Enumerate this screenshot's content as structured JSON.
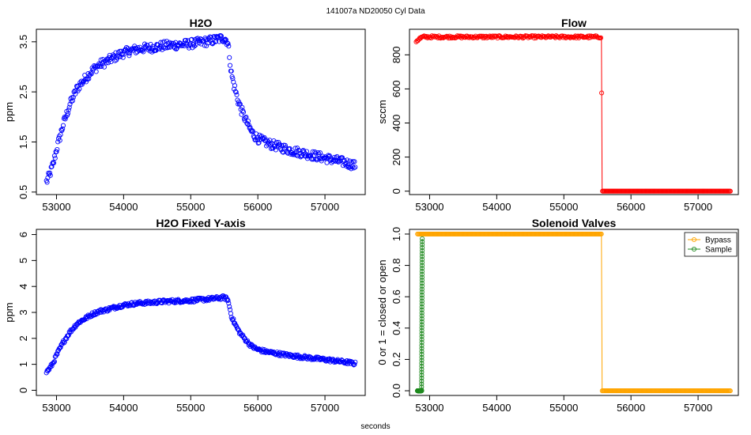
{
  "figure": {
    "suptitle": "141007a   ND20050   Cyl Data",
    "xlabel": "seconds"
  },
  "chart_data": [
    {
      "id": "h2o",
      "type": "scatter",
      "title": "H2O",
      "xlabel": "",
      "ylabel": "ppm",
      "xlim": [
        52700,
        57600
      ],
      "ylim": [
        0.45,
        3.75
      ],
      "xticks": [
        53000,
        54000,
        55000,
        56000,
        57000
      ],
      "yticks": [
        0.5,
        1.5,
        2.5,
        3.5
      ],
      "ytick_labels": [
        "0.5",
        "1.5",
        "2.5",
        "3.5"
      ],
      "ytick_rotated": true,
      "series": [
        {
          "name": "H2O",
          "color": "#0000ff",
          "marker": "open-circle",
          "x": [
            52850,
            52900,
            52950,
            53000,
            53050,
            53100,
            53150,
            53200,
            53250,
            53300,
            53350,
            53400,
            53450,
            53500,
            53550,
            53600,
            53650,
            53700,
            53750,
            53800,
            53850,
            53900,
            53950,
            54000,
            54100,
            54200,
            54300,
            54400,
            54500,
            54600,
            54700,
            54800,
            54900,
            55000,
            55100,
            55200,
            55300,
            55400,
            55500,
            55550,
            55580,
            55600,
            55650,
            55700,
            55750,
            55800,
            55850,
            55900,
            55950,
            56000,
            56100,
            56200,
            56300,
            56400,
            56500,
            56600,
            56700,
            56800,
            56900,
            57000,
            57100,
            57200,
            57300,
            57400,
            57450
          ],
          "y": [
            0.7,
            0.85,
            1.05,
            1.35,
            1.6,
            1.85,
            2.05,
            2.25,
            2.4,
            2.55,
            2.65,
            2.72,
            2.8,
            2.88,
            2.95,
            3.0,
            3.05,
            3.08,
            3.1,
            3.15,
            3.18,
            3.22,
            3.25,
            3.28,
            3.32,
            3.35,
            3.37,
            3.38,
            3.4,
            3.42,
            3.43,
            3.44,
            3.45,
            3.46,
            3.48,
            3.5,
            3.52,
            3.55,
            3.58,
            3.5,
            3.2,
            2.9,
            2.6,
            2.35,
            2.15,
            2.0,
            1.85,
            1.72,
            1.63,
            1.57,
            1.5,
            1.45,
            1.41,
            1.37,
            1.33,
            1.3,
            1.27,
            1.24,
            1.21,
            1.18,
            1.15,
            1.12,
            1.09,
            1.05,
            1.02
          ]
        }
      ]
    },
    {
      "id": "flow",
      "type": "scatter",
      "title": "Flow",
      "xlabel": "",
      "ylabel": "sccm",
      "xlim": [
        52700,
        57600
      ],
      "ylim": [
        -20,
        950
      ],
      "xticks": [
        53000,
        54000,
        55000,
        56000,
        57000
      ],
      "yticks": [
        0,
        200,
        400,
        600,
        800
      ],
      "ytick_labels": [
        "0",
        "200",
        "400",
        "600",
        "800"
      ],
      "ytick_rotated": true,
      "series": [
        {
          "name": "Flow",
          "color": "#ff0000",
          "marker": "open-circle",
          "x": [
            52800,
            52850,
            52900,
            53000,
            53500,
            54000,
            54500,
            55000,
            55500,
            55560,
            55570,
            56000,
            56500,
            57000,
            57480
          ],
          "y": [
            880,
            895,
            905,
            905,
            905,
            905,
            905,
            905,
            905,
            905,
            0,
            0,
            0,
            0,
            0
          ]
        }
      ]
    },
    {
      "id": "h2o-fixed",
      "type": "scatter",
      "title": "H2O Fixed Y-axis",
      "xlabel": "",
      "ylabel": "ppm",
      "xlim": [
        52700,
        57600
      ],
      "ylim": [
        -0.2,
        6.2
      ],
      "xticks": [
        53000,
        54000,
        55000,
        56000,
        57000
      ],
      "yticks": [
        0,
        1,
        2,
        3,
        4,
        5,
        6
      ],
      "ytick_labels": [
        "0",
        "1",
        "2",
        "3",
        "4",
        "5",
        "6"
      ],
      "ytick_rotated": true,
      "series": [
        {
          "name": "H2O",
          "color": "#0000ff",
          "marker": "open-circle",
          "x": [
            52850,
            52900,
            52950,
            53000,
            53050,
            53100,
            53150,
            53200,
            53250,
            53300,
            53350,
            53400,
            53450,
            53500,
            53550,
            53600,
            53650,
            53700,
            53750,
            53800,
            53850,
            53900,
            53950,
            54000,
            54100,
            54200,
            54300,
            54400,
            54500,
            54600,
            54700,
            54800,
            54900,
            55000,
            55100,
            55200,
            55300,
            55400,
            55500,
            55550,
            55580,
            55600,
            55650,
            55700,
            55750,
            55800,
            55850,
            55900,
            55950,
            56000,
            56100,
            56200,
            56300,
            56400,
            56500,
            56600,
            56700,
            56800,
            56900,
            57000,
            57100,
            57200,
            57300,
            57400,
            57450
          ],
          "y": [
            0.7,
            0.85,
            1.05,
            1.35,
            1.6,
            1.85,
            2.05,
            2.25,
            2.4,
            2.55,
            2.65,
            2.72,
            2.8,
            2.88,
            2.95,
            3.0,
            3.05,
            3.08,
            3.1,
            3.15,
            3.18,
            3.22,
            3.25,
            3.28,
            3.32,
            3.35,
            3.37,
            3.38,
            3.4,
            3.42,
            3.43,
            3.44,
            3.45,
            3.46,
            3.48,
            3.5,
            3.52,
            3.55,
            3.58,
            3.5,
            3.2,
            2.9,
            2.6,
            2.35,
            2.15,
            2.0,
            1.85,
            1.72,
            1.63,
            1.57,
            1.5,
            1.45,
            1.41,
            1.37,
            1.33,
            1.3,
            1.27,
            1.24,
            1.21,
            1.18,
            1.15,
            1.12,
            1.09,
            1.05,
            1.02
          ]
        }
      ]
    },
    {
      "id": "valves",
      "type": "scatter",
      "title": "Solenoid Valves",
      "xlabel": "",
      "ylabel": "0 or 1 = closed or open",
      "xlim": [
        52700,
        57600
      ],
      "ylim": [
        -0.03,
        1.03
      ],
      "xticks": [
        53000,
        54000,
        55000,
        56000,
        57000
      ],
      "yticks": [
        0.0,
        0.2,
        0.4,
        0.6,
        0.8,
        1.0
      ],
      "ytick_labels": [
        "0.0",
        "0.2",
        "0.4",
        "0.6",
        "0.8",
        "1.0"
      ],
      "ytick_rotated": true,
      "legend": {
        "position": "top-right",
        "entries": [
          "Bypass",
          "Sample"
        ]
      },
      "series": [
        {
          "name": "Bypass",
          "color": "#ffa500",
          "marker": "open-circle",
          "x": [
            52820,
            53000,
            53500,
            54000,
            54500,
            55000,
            55500,
            55560,
            55570,
            56000,
            56500,
            57000,
            57480
          ],
          "y": [
            1,
            1,
            1,
            1,
            1,
            1,
            1,
            1,
            0,
            0,
            0,
            0,
            0
          ]
        },
        {
          "name": "Sample",
          "color": "#228b22",
          "marker": "open-circle",
          "x": [
            52820,
            52850,
            52870,
            52880,
            52890
          ],
          "y": [
            0,
            0,
            0,
            0,
            0.97
          ]
        }
      ]
    }
  ]
}
